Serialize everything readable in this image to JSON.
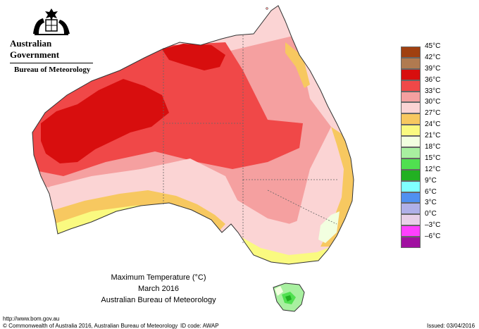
{
  "header": {
    "government": "Australian Government",
    "bureau": "Bureau of Meteorology"
  },
  "caption": {
    "title": "Maximum Temperature (°C)",
    "period": "March 2016",
    "source": "Australian Bureau of Meteorology"
  },
  "legend": [
    {
      "label": "45°C",
      "color": "#a04010"
    },
    {
      "label": "42°C",
      "color": "#b07a50"
    },
    {
      "label": "39°C",
      "color": "#d80e0e"
    },
    {
      "label": "36°C",
      "color": "#f04848"
    },
    {
      "label": "33°C",
      "color": "#f5a0a0"
    },
    {
      "label": "30°C",
      "color": "#fbd4d4"
    },
    {
      "label": "27°C",
      "color": "#f7c860"
    },
    {
      "label": "24°C",
      "color": "#fafa80"
    },
    {
      "label": "21°C",
      "color": "#f2ffe0"
    },
    {
      "label": "18°C",
      "color": "#a8f0a0"
    },
    {
      "label": "15°C",
      "color": "#50e050"
    },
    {
      "label": "12°C",
      "color": "#22b022"
    },
    {
      "label": "9°C",
      "color": "#80ffff"
    },
    {
      "label": "6°C",
      "color": "#5090f0"
    },
    {
      "label": "3°C",
      "color": "#b0b0e8"
    },
    {
      "label": "0°C",
      "color": "#e8d0e8"
    },
    {
      "label": "–3°C",
      "color": "#ff40ff"
    },
    {
      "label": "–6°C",
      "color": "#a010a0"
    }
  ],
  "footer": {
    "url": "http://www.bom.gov.au",
    "copyright": "© Commonwealth of Australia 2016, Australian Bureau of Meteorology",
    "id_code": "ID code: AWAP",
    "issued": "Issued: 03/04/2016"
  }
}
